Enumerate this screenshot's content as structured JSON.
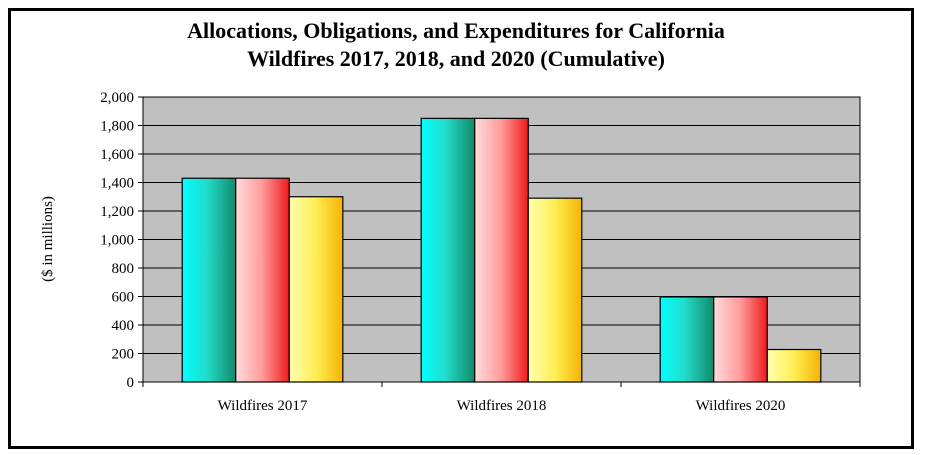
{
  "chart_data": {
    "type": "bar",
    "title_lines": [
      "Allocations, Obligations, and Expenditures for California",
      "Wildfires 2017, 2018, and 2020 (Cumulative)"
    ],
    "ylabel": "($ in millions)",
    "xlabel": "",
    "ylim": [
      0,
      2000
    ],
    "yticks": [
      0,
      200,
      400,
      600,
      800,
      1000,
      1200,
      1400,
      1600,
      1800,
      2000
    ],
    "ytick_labels": [
      "0",
      "200",
      "400",
      "600",
      "800",
      "1,000",
      "1,200",
      "1,400",
      "1,600",
      "1,800",
      "2,000"
    ],
    "categories": [
      "Wildfires 2017",
      "Wildfires 2018",
      "Wildfires 2020"
    ],
    "series": [
      {
        "values": [
          1430,
          1850,
          597
        ],
        "color": "#00e5e0"
      },
      {
        "values": [
          1430,
          1850,
          597
        ],
        "color": "#ff6060"
      },
      {
        "values": [
          1300,
          1290,
          228
        ],
        "color": "#ffdd33"
      }
    ],
    "grid": true,
    "legend": "none",
    "plot_background": "#c0c0c0"
  }
}
